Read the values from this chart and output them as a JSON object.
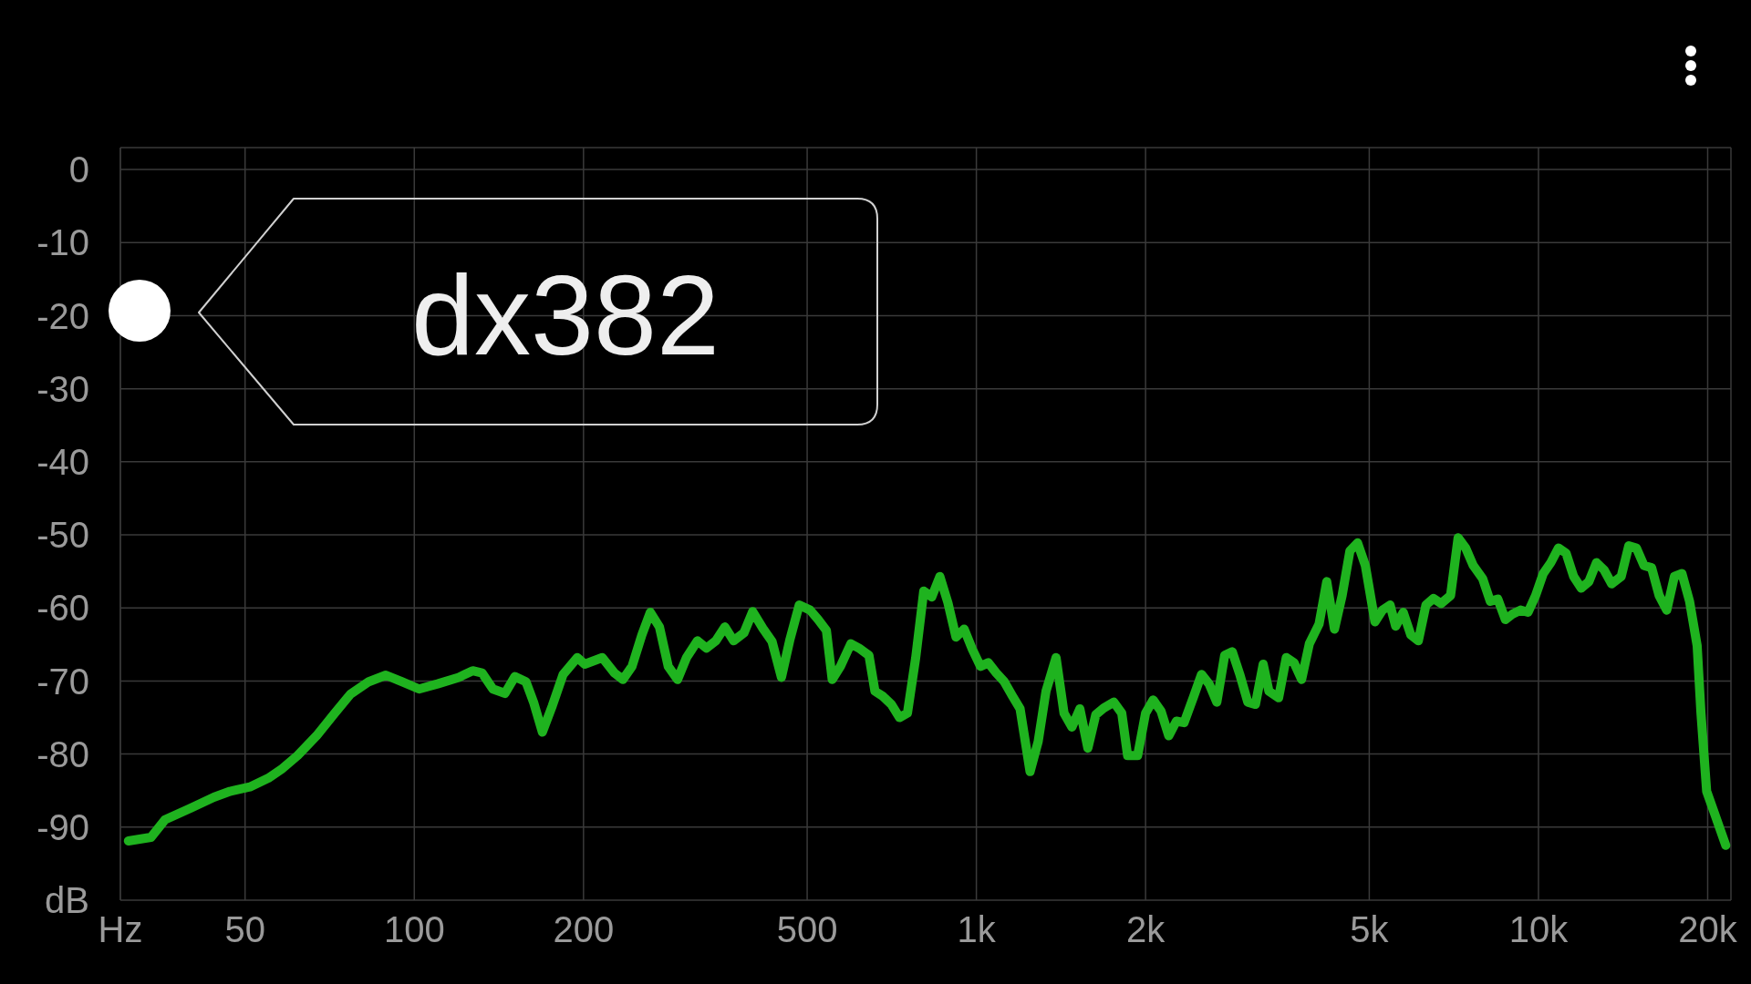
{
  "chart_data": {
    "type": "line",
    "x": [
      31,
      34,
      36,
      40,
      44,
      47,
      51,
      55,
      58,
      62,
      67,
      72,
      77,
      83,
      89,
      95,
      102,
      110,
      120,
      127,
      132,
      138,
      145,
      151,
      158,
      163,
      169,
      176,
      184,
      195,
      201,
      216,
      227,
      235,
      244,
      254,
      263,
      273,
      283,
      294,
      305,
      319,
      331,
      344,
      357,
      370,
      386,
      400,
      417,
      433,
      450,
      466,
      484,
      506,
      523,
      541,
      554,
      573,
      598,
      618,
      644,
      660,
      682,
      706,
      730,
      754,
      780,
      806,
      833,
      861,
      890,
      920,
      951,
      984,
      1017,
      1050,
      1085,
      1121,
      1158,
      1196,
      1246,
      1288,
      1330,
      1386,
      1432,
      1479,
      1528,
      1579,
      1631,
      1685,
      1756,
      1814,
      1858,
      1936,
      2000,
      2063,
      2130,
      2199,
      2269,
      2342,
      2436,
      2515,
      2594,
      2678,
      2765,
      2853,
      2945,
      3040,
      3137,
      3238,
      3315,
      3449,
      3559,
      3674,
      3790,
      3912,
      4071,
      4201,
      4336,
      4474,
      4619,
      4766,
      4920,
      5118,
      5279,
      5445,
      5571,
      5747,
      5928,
      6114,
      6307,
      6506,
      6711,
      6976,
      7196,
      7422,
      7656,
      7957,
      8208,
      8466,
      8732,
      9007,
      9290,
      9582,
      9884,
      10196,
      10519,
      10852,
      11196,
      11550,
      11915,
      12293,
      12682,
      13083,
      13497,
      14034,
      14478,
      14936,
      15409,
      15896,
      16394,
      16913,
      17449,
      18001,
      18570,
      19158,
      19458,
      19917,
      20586,
      21540
    ],
    "series": [
      {
        "color": "#1fb31f",
        "values": [
          -91.9,
          -91.4,
          -89.0,
          -87.4,
          -85.9,
          -85.1,
          -84.5,
          -83.3,
          -82.1,
          -80.2,
          -77.5,
          -74.5,
          -71.8,
          -70.1,
          -69.2,
          -70.1,
          -71.1,
          -70.4,
          -69.5,
          -68.6,
          -68.9,
          -71.1,
          -71.7,
          -69.4,
          -70.1,
          -72.9,
          -77.0,
          -73.4,
          -69.1,
          -66.8,
          -67.7,
          -66.8,
          -68.9,
          -69.8,
          -68.0,
          -63.7,
          -60.6,
          -62.6,
          -68.0,
          -69.8,
          -66.8,
          -64.5,
          -65.5,
          -64.5,
          -62.6,
          -64.5,
          -63.4,
          -60.5,
          -62.8,
          -64.6,
          -69.5,
          -64.3,
          -59.6,
          -60.3,
          -61.6,
          -63.1,
          -69.8,
          -68.0,
          -64.9,
          -65.5,
          -66.5,
          -71.4,
          -72.1,
          -73.2,
          -75.0,
          -74.4,
          -66.8,
          -57.7,
          -58.5,
          -55.7,
          -59.3,
          -64.0,
          -62.9,
          -65.7,
          -68.0,
          -67.5,
          -68.9,
          -70.1,
          -72.0,
          -73.8,
          -82.4,
          -78.3,
          -71.4,
          -66.8,
          -74.4,
          -76.3,
          -73.8,
          -79.2,
          -74.6,
          -73.7,
          -72.9,
          -74.4,
          -80.2,
          -80.2,
          -74.4,
          -72.6,
          -74.1,
          -77.5,
          -75.5,
          -75.7,
          -72.1,
          -69.1,
          -70.4,
          -72.9,
          -66.5,
          -66.0,
          -69.2,
          -72.9,
          -73.2,
          -67.7,
          -71.4,
          -72.3,
          -66.8,
          -67.5,
          -69.8,
          -64.9,
          -62.2,
          -56.4,
          -62.9,
          -58.3,
          -52.2,
          -51.1,
          -54.2,
          -61.9,
          -60.3,
          -59.6,
          -62.5,
          -60.6,
          -63.7,
          -64.5,
          -59.6,
          -58.7,
          -59.4,
          -58.3,
          -50.4,
          -51.8,
          -54.2,
          -56.0,
          -59.1,
          -58.8,
          -61.6,
          -60.8,
          -60.3,
          -60.6,
          -58.3,
          -55.3,
          -53.8,
          -51.8,
          -52.5,
          -55.7,
          -57.3,
          -56.4,
          -53.8,
          -54.8,
          -56.7,
          -55.7,
          -51.5,
          -51.8,
          -54.2,
          -54.5,
          -58.3,
          -60.3,
          -55.7,
          -55.3,
          -59.1,
          -65.2,
          -74.4,
          -85.1,
          -88.2,
          -92.5
        ]
      }
    ],
    "log": "x",
    "xlim": [
      30,
      22000
    ],
    "xticks": [
      {
        "value": 30,
        "label": "Hz"
      },
      50,
      100,
      200,
      500,
      {
        "value": 1000,
        "label": "1k"
      },
      {
        "value": 2000,
        "label": "2k"
      },
      {
        "value": 5000,
        "label": "5k"
      },
      {
        "value": 10000,
        "label": "10k"
      },
      {
        "value": 20000,
        "label": "20k"
      }
    ],
    "ylim": [
      -100,
      3
    ],
    "yticks": [
      {
        "value": -100,
        "label": "dB"
      },
      -90,
      -80,
      -70,
      -60,
      -50,
      -40,
      -30,
      -20,
      -10,
      0
    ],
    "grid": true,
    "marker": "none",
    "line_style": "solid",
    "annotations": [
      "dx382"
    ]
  }
}
